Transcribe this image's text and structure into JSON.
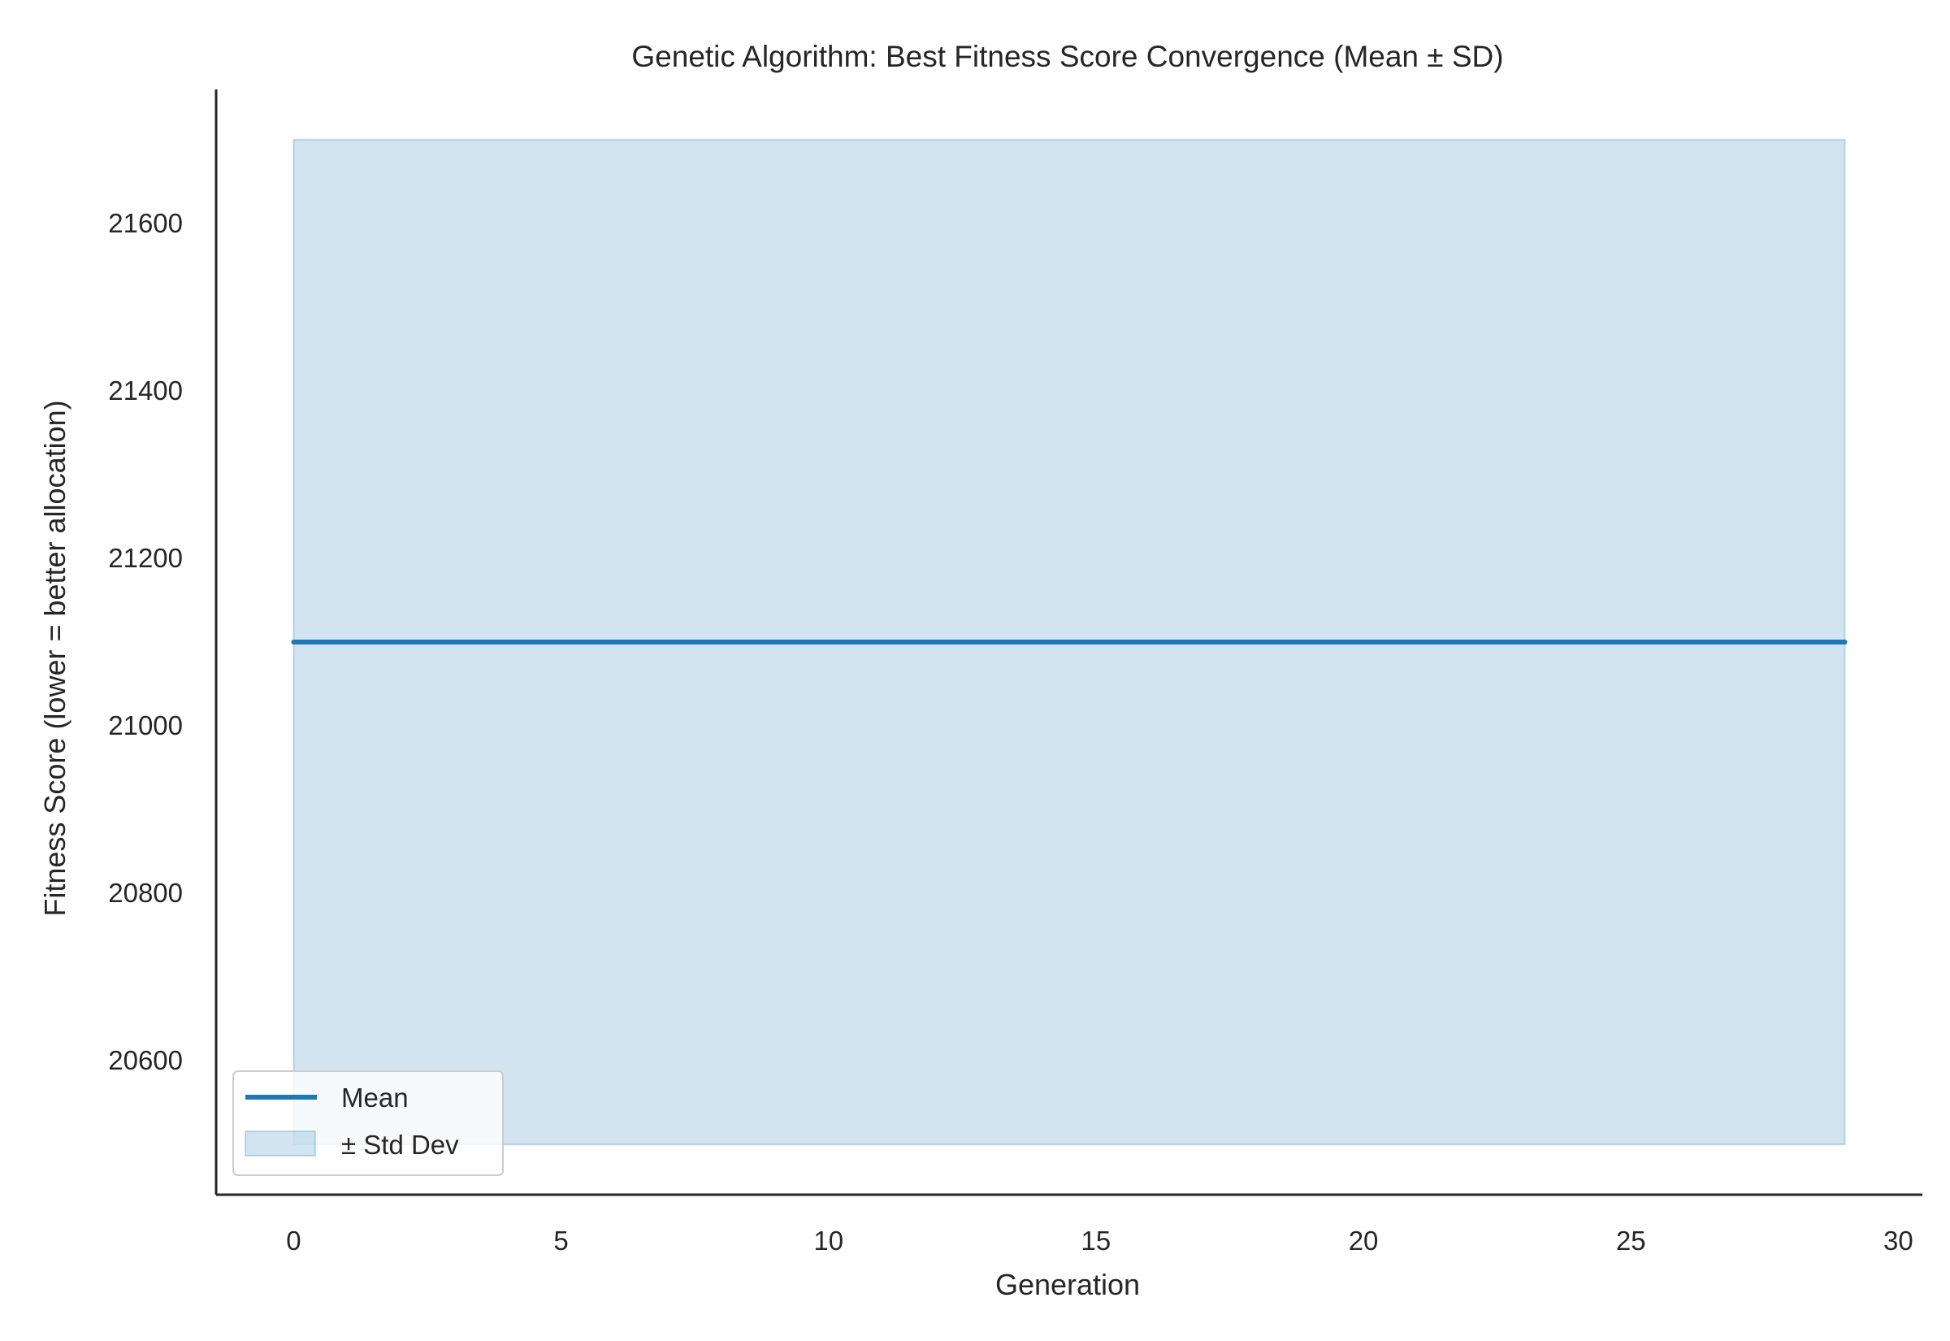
{
  "chart_data": {
    "type": "line",
    "title": "Genetic Algorithm: Best Fitness Score Convergence (Mean ± SD)",
    "xlabel": "Generation",
    "ylabel": "Fitness Score (lower = better allocation)",
    "xlim": [
      -1.45,
      30.45
    ],
    "ylim": [
      20440,
      21760
    ],
    "x_ticks": [
      0,
      5,
      10,
      15,
      20,
      25,
      30
    ],
    "y_ticks": [
      20600,
      20800,
      21000,
      21200,
      21400,
      21600
    ],
    "x": [
      0,
      1,
      2,
      3,
      4,
      5,
      6,
      7,
      8,
      9,
      10,
      11,
      12,
      13,
      14,
      15,
      16,
      17,
      18,
      19,
      20,
      21,
      22,
      23,
      24,
      25,
      26,
      27,
      28,
      29
    ],
    "series": [
      {
        "name": "Mean",
        "color": "#1f77b4",
        "values": [
          21100,
          21100,
          21100,
          21100,
          21100,
          21100,
          21100,
          21100,
          21100,
          21100,
          21100,
          21100,
          21100,
          21100,
          21100,
          21100,
          21100,
          21100,
          21100,
          21100,
          21100,
          21100,
          21100,
          21100,
          21100,
          21100,
          21100,
          21100,
          21100,
          21100
        ]
      }
    ],
    "band": {
      "name": "± Std Dev",
      "color": "#1f77b4",
      "lower": [
        20500,
        20500,
        20500,
        20500,
        20500,
        20500,
        20500,
        20500,
        20500,
        20500,
        20500,
        20500,
        20500,
        20500,
        20500,
        20500,
        20500,
        20500,
        20500,
        20500,
        20500,
        20500,
        20500,
        20500,
        20500,
        20500,
        20500,
        20500,
        20500,
        20500
      ],
      "upper": [
        21700,
        21700,
        21700,
        21700,
        21700,
        21700,
        21700,
        21700,
        21700,
        21700,
        21700,
        21700,
        21700,
        21700,
        21700,
        21700,
        21700,
        21700,
        21700,
        21700,
        21700,
        21700,
        21700,
        21700,
        21700,
        21700,
        21700,
        21700,
        21700,
        21700
      ]
    },
    "grid": false,
    "legend_position": "lower-left"
  }
}
